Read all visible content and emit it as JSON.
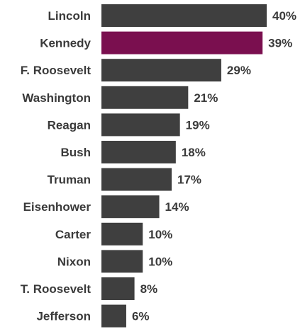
{
  "chart_data": {
    "type": "bar",
    "orientation": "horizontal",
    "categories": [
      "Lincoln",
      "Kennedy",
      "F. Roosevelt",
      "Washington",
      "Reagan",
      "Bush",
      "Truman",
      "Eisenhower",
      "Carter",
      "Nixon",
      "T. Roosevelt",
      "Jefferson"
    ],
    "values": [
      40,
      39,
      29,
      21,
      19,
      18,
      17,
      14,
      10,
      10,
      8,
      6
    ],
    "value_labels": [
      "40%",
      "39%",
      "29%",
      "21%",
      "19%",
      "18%",
      "17%",
      "14%",
      "10%",
      "10%",
      "8%",
      "6%"
    ],
    "unit": "%",
    "highlight_index": 1,
    "colors": {
      "bar": "#3f3f3f",
      "highlight": "#7a0f4f",
      "text": "#3a3a3a"
    },
    "title": "",
    "xlabel": "",
    "ylabel": "",
    "grid": false,
    "legend": "none"
  }
}
